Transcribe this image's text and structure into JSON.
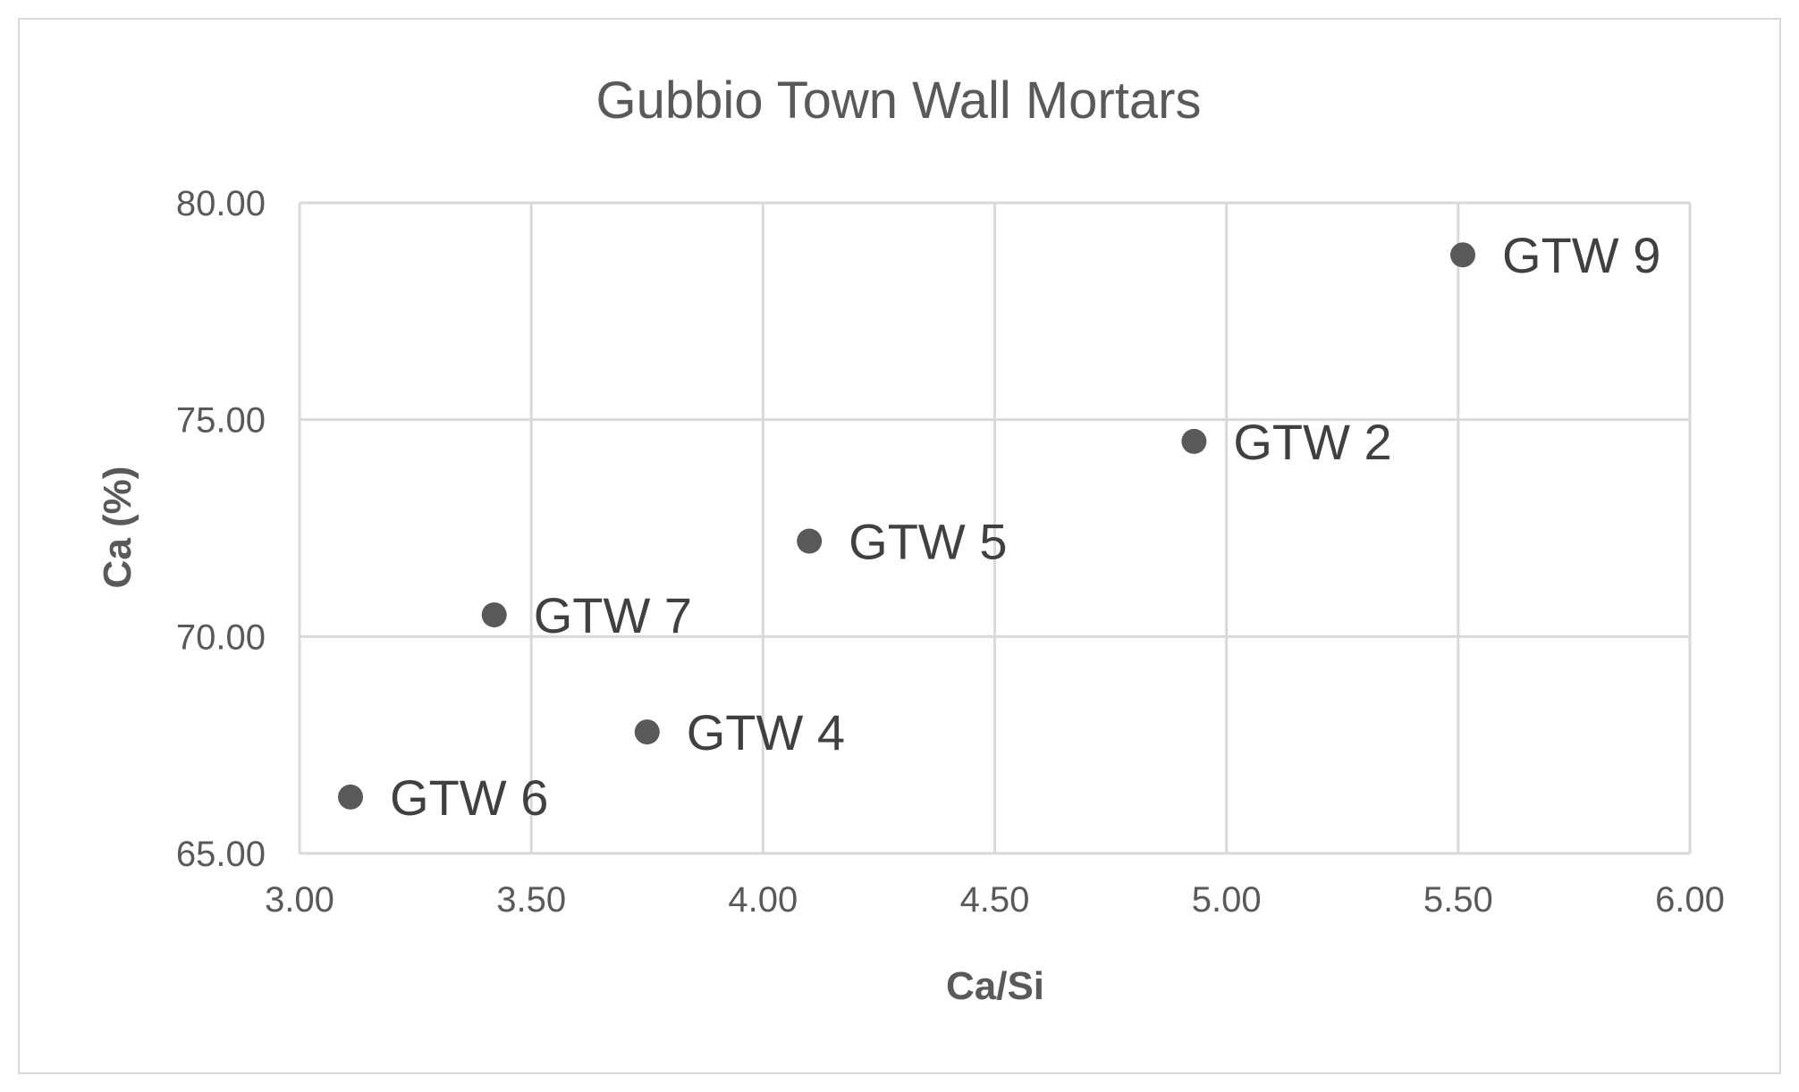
{
  "chart_data": {
    "type": "scatter",
    "title": "Gubbio Town Wall Mortars",
    "xlabel": "Ca/Si",
    "ylabel": "Ca (%)",
    "xlim": [
      3.0,
      6.0
    ],
    "ylim": [
      65.0,
      80.0
    ],
    "x_ticks": [
      "3.00",
      "3.50",
      "4.00",
      "4.50",
      "5.00",
      "5.50",
      "6.00"
    ],
    "y_ticks": [
      "65.00",
      "70.00",
      "75.00",
      "80.00"
    ],
    "grid": true,
    "legend": "none",
    "marker_color": "#595959",
    "points": [
      {
        "label": "GTW 9",
        "x": 5.51,
        "y": 78.8
      },
      {
        "label": "GTW 2",
        "x": 4.93,
        "y": 74.5
      },
      {
        "label": "GTW 5",
        "x": 4.1,
        "y": 72.2
      },
      {
        "label": "GTW 7",
        "x": 3.42,
        "y": 70.5
      },
      {
        "label": "GTW 4",
        "x": 3.75,
        "y": 67.8
      },
      {
        "label": "GTW 6",
        "x": 3.11,
        "y": 66.3
      }
    ]
  }
}
